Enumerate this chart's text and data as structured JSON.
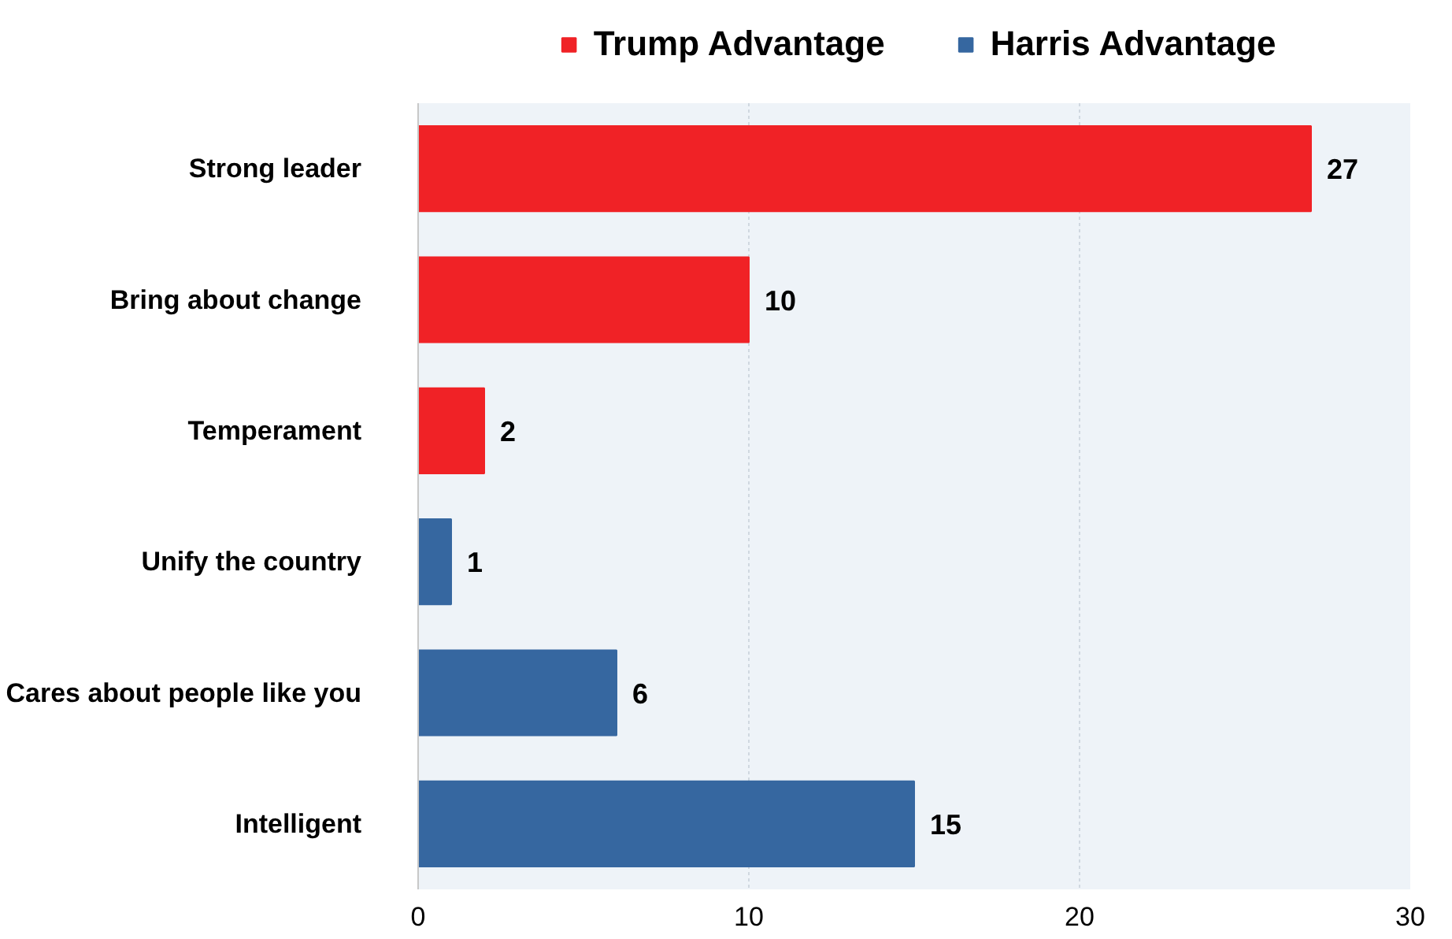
{
  "chart_data": {
    "type": "bar",
    "orientation": "horizontal",
    "categories": [
      "Strong leader",
      "Bring about change",
      "Temperament",
      "Unify the country",
      "Cares about people like you",
      "Intelligent"
    ],
    "series": [
      {
        "name": "Trump Advantage",
        "color": "#f02226",
        "values": [
          27,
          10,
          2,
          null,
          null,
          null
        ]
      },
      {
        "name": "Harris Advantage",
        "color": "#3667a0",
        "values": [
          null,
          null,
          null,
          1,
          6,
          15
        ]
      }
    ],
    "xlim": [
      0,
      30
    ],
    "xticks": [
      0,
      10,
      20,
      30
    ],
    "grid": "x",
    "legend": "top",
    "data_labels": true
  }
}
